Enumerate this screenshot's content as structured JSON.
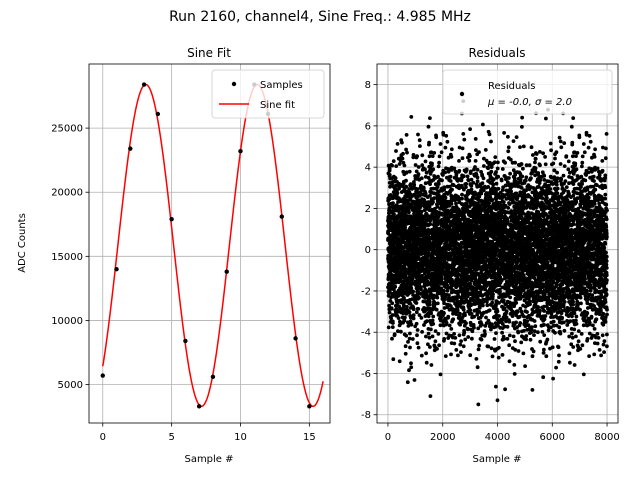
{
  "suptitle": "Run 2160, channel4, Sine Freq.: 4.985 MHz",
  "chart_data": [
    {
      "type": "line",
      "title": "Sine Fit",
      "xlabel": "Sample #",
      "ylabel": "ADC Counts",
      "xlim": [
        -1.0,
        16.5
      ],
      "ylim": [
        2000,
        30000
      ],
      "xticks": [
        0,
        5,
        10,
        15
      ],
      "yticks": [
        5000,
        10000,
        15000,
        20000,
        25000
      ],
      "series": [
        {
          "name": "Samples",
          "style": "points",
          "color": "#000000",
          "x": [
            0,
            1,
            2,
            3,
            4,
            5,
            6,
            7,
            8,
            9,
            10,
            11,
            12,
            13,
            14,
            15
          ],
          "y": [
            5700,
            14000,
            23400,
            28400,
            26100,
            17900,
            8400,
            3300,
            5600,
            13800,
            23200,
            28400,
            26100,
            18100,
            8600,
            3300
          ]
        },
        {
          "name": "Sine fit",
          "style": "line",
          "color": "#ff0000",
          "model": {
            "offset": 15850,
            "amplitude": 12550,
            "period": 8.1,
            "phase_sample": 3.12,
            "x_start": 0,
            "x_end": 16
          }
        }
      ],
      "legend": {
        "position": "top-right",
        "entries": [
          "Samples",
          "Sine fit"
        ]
      }
    },
    {
      "type": "scatter",
      "title": "Residuals",
      "xlabel": "Sample #",
      "ylabel": "",
      "xlim": [
        -400,
        8400
      ],
      "ylim": [
        -8.4,
        9.0
      ],
      "xticks": [
        0,
        2000,
        4000,
        6000,
        8000
      ],
      "yticks": [
        -8,
        -6,
        -4,
        -2,
        0,
        2,
        4,
        6,
        8
      ],
      "series": [
        {
          "name": "Residuals",
          "color": "#000000",
          "n_points": 8000,
          "mean": 0.0,
          "std": 2.0,
          "x_range": [
            0,
            8000
          ],
          "outliers": [
            {
              "x": 2750,
              "y": 7.2
            },
            {
              "x": 2700,
              "y": 6.6
            },
            {
              "x": 4900,
              "y": 6.4
            },
            {
              "x": 3300,
              "y": -7.5
            },
            {
              "x": 1550,
              "y": -7.1
            },
            {
              "x": 4000,
              "y": -7.3
            }
          ]
        }
      ],
      "legend": {
        "position": "top-right",
        "entries": [
          "Residuals",
          "μ = -0.0, σ = 2.0"
        ]
      }
    }
  ]
}
